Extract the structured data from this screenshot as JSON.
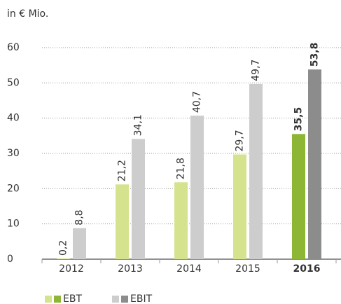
{
  "chart_data": {
    "type": "bar",
    "y_axis_label": "in € Mio.",
    "categories": [
      "2012",
      "2013",
      "2014",
      "2015",
      "2016"
    ],
    "series": [
      {
        "name": "EBT",
        "colors": [
          "#d5e38e",
          "#d5e38e",
          "#d5e38e",
          "#d5e38e",
          "#8cb633"
        ],
        "values": [
          0.2,
          21.2,
          21.8,
          29.7,
          35.5
        ],
        "value_labels": [
          "0,2",
          "21,2",
          "21,8",
          "29,7",
          "35,5"
        ]
      },
      {
        "name": "EBIT",
        "colors": [
          "#cdcdcd",
          "#cdcdcd",
          "#cdcdcd",
          "#cdcdcd",
          "#8c8c8c"
        ],
        "values": [
          8.8,
          34.1,
          40.7,
          49.7,
          53.8
        ],
        "value_labels": [
          "8,8",
          "34,1",
          "40,7",
          "49,7",
          "53,8"
        ]
      }
    ],
    "ylim": [
      0,
      60
    ],
    "yticks": [
      0,
      10,
      20,
      30,
      40,
      50,
      60
    ],
    "grid": true
  }
}
